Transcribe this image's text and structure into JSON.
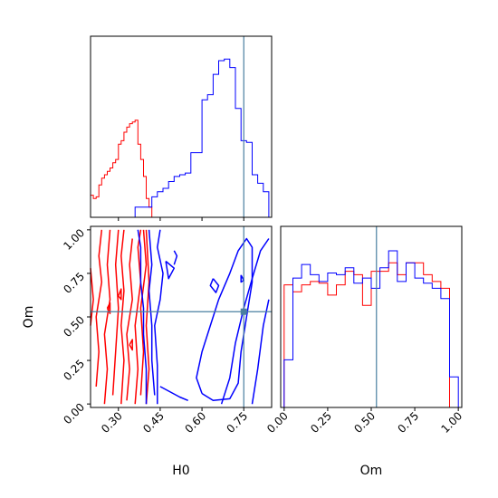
{
  "chart_data": {
    "type": "corner",
    "parameters": [
      "H0",
      "Om"
    ],
    "truth": {
      "H0": 0.75,
      "Om": 0.53
    },
    "colors": {
      "series_a": "#ff0000",
      "series_b": "#0000ff",
      "truth": "#4a7fa0"
    },
    "axes": {
      "H0": {
        "range": [
          0.2,
          0.85
        ],
        "ticks": [
          0.3,
          0.45,
          0.6,
          0.75
        ],
        "tick_labels": [
          "0.30",
          "0.45",
          "0.60",
          "0.75"
        ],
        "xlabel": "H0"
      },
      "Om": {
        "range": [
          -0.02,
          1.02
        ],
        "ticks": [
          0.0,
          0.25,
          0.5,
          0.75,
          1.0
        ],
        "tick_labels": [
          "0.00",
          "0.25",
          "0.50",
          "0.75",
          "1.00"
        ],
        "xlabel": "Om",
        "ylabel": "Om"
      }
    },
    "hist_H0": {
      "ymax": 1.0,
      "series": [
        {
          "color": "#ff0000",
          "x": [
            0.2,
            0.21,
            0.22,
            0.23,
            0.24,
            0.25,
            0.26,
            0.27,
            0.28,
            0.29,
            0.3,
            0.31,
            0.32,
            0.33,
            0.34,
            0.35,
            0.36,
            0.37,
            0.38,
            0.39,
            0.4,
            0.41,
            0.42
          ],
          "y": [
            0.13,
            0.11,
            0.12,
            0.19,
            0.23,
            0.25,
            0.27,
            0.29,
            0.32,
            0.34,
            0.43,
            0.45,
            0.5,
            0.53,
            0.55,
            0.56,
            0.57,
            0.43,
            0.34,
            0.24,
            0.11,
            0.06,
            0.0
          ]
        },
        {
          "color": "#0000ff",
          "x": [
            0.2,
            0.22,
            0.24,
            0.26,
            0.28,
            0.3,
            0.32,
            0.34,
            0.36,
            0.38,
            0.4,
            0.42,
            0.44,
            0.46,
            0.48,
            0.5,
            0.52,
            0.54,
            0.56,
            0.58,
            0.6,
            0.62,
            0.64,
            0.66,
            0.68,
            0.7,
            0.72,
            0.74,
            0.76,
            0.78,
            0.8,
            0.82,
            0.84
          ],
          "y": [
            0.0,
            0.0,
            0.0,
            0.0,
            0.0,
            0.0,
            0.0,
            0.0,
            0.06,
            0.06,
            0.06,
            0.12,
            0.15,
            0.17,
            0.21,
            0.24,
            0.25,
            0.26,
            0.38,
            0.38,
            0.69,
            0.72,
            0.84,
            0.92,
            0.93,
            0.88,
            0.64,
            0.45,
            0.44,
            0.25,
            0.2,
            0.15,
            0.0
          ]
        }
      ]
    },
    "hist_Om": {
      "ymax": 1.0,
      "series": [
        {
          "color": "#ff0000",
          "x": [
            0.0,
            0.05,
            0.1,
            0.15,
            0.2,
            0.25,
            0.3,
            0.35,
            0.4,
            0.45,
            0.5,
            0.55,
            0.6,
            0.65,
            0.7,
            0.75,
            0.8,
            0.85,
            0.9,
            0.95
          ],
          "y": [
            0.72,
            0.68,
            0.72,
            0.74,
            0.73,
            0.66,
            0.72,
            0.8,
            0.78,
            0.6,
            0.8,
            0.8,
            0.85,
            0.78,
            0.85,
            0.85,
            0.78,
            0.74,
            0.7,
            0.0
          ]
        },
        {
          "color": "#0000ff",
          "x": [
            0.0,
            0.05,
            0.1,
            0.15,
            0.2,
            0.25,
            0.3,
            0.35,
            0.4,
            0.45,
            0.5,
            0.55,
            0.6,
            0.65,
            0.7,
            0.75,
            0.8,
            0.85,
            0.9,
            0.95
          ],
          "y": [
            0.28,
            0.76,
            0.84,
            0.78,
            0.74,
            0.79,
            0.78,
            0.82,
            0.73,
            0.76,
            0.7,
            0.82,
            0.92,
            0.74,
            0.85,
            0.76,
            0.73,
            0.7,
            0.64,
            0.18
          ]
        }
      ]
    },
    "contours": [
      {
        "color": "#ff0000",
        "paths": [
          [
            [
              0.2,
              0.78
            ],
            [
              0.21,
              0.6
            ],
            [
              0.2,
              0.45
            ]
          ],
          [
            [
              0.22,
              0.1
            ],
            [
              0.23,
              0.3
            ],
            [
              0.22,
              0.5
            ],
            [
              0.24,
              0.7
            ],
            [
              0.23,
              0.85
            ],
            [
              0.24,
              1.0
            ]
          ],
          [
            [
              0.25,
              0.0
            ],
            [
              0.26,
              0.2
            ],
            [
              0.25,
              0.4
            ],
            [
              0.27,
              0.6
            ],
            [
              0.26,
              0.8
            ],
            [
              0.27,
              1.0
            ]
          ],
          [
            [
              0.28,
              0.05
            ],
            [
              0.29,
              0.3
            ],
            [
              0.3,
              0.55
            ],
            [
              0.29,
              0.8
            ],
            [
              0.3,
              1.0
            ]
          ],
          [
            [
              0.31,
              0.0
            ],
            [
              0.32,
              0.25
            ],
            [
              0.31,
              0.45
            ],
            [
              0.32,
              0.65
            ],
            [
              0.31,
              0.85
            ],
            [
              0.32,
              1.0
            ]
          ],
          [
            [
              0.33,
              0.02
            ],
            [
              0.34,
              0.2
            ],
            [
              0.33,
              0.4
            ],
            [
              0.35,
              0.6
            ],
            [
              0.34,
              0.8
            ],
            [
              0.35,
              0.95
            ]
          ],
          [
            [
              0.36,
              0.0
            ],
            [
              0.37,
              0.2
            ],
            [
              0.36,
              0.45
            ],
            [
              0.38,
              0.7
            ],
            [
              0.37,
              0.9
            ],
            [
              0.38,
              1.0
            ]
          ],
          [
            [
              0.38,
              0.05
            ],
            [
              0.39,
              0.3
            ],
            [
              0.38,
              0.55
            ],
            [
              0.4,
              0.8
            ],
            [
              0.39,
              1.0
            ]
          ],
          [
            [
              0.4,
              0.0
            ],
            [
              0.41,
              0.2
            ],
            [
              0.4,
              0.45
            ],
            [
              0.41,
              0.7
            ],
            [
              0.4,
              1.0
            ]
          ],
          [
            [
              0.26,
              0.55
            ],
            [
              0.27,
              0.58
            ],
            [
              0.27,
              0.52
            ],
            [
              0.26,
              0.55
            ]
          ],
          [
            [
              0.3,
              0.62
            ],
            [
              0.31,
              0.66
            ],
            [
              0.31,
              0.6
            ],
            [
              0.3,
              0.62
            ]
          ],
          [
            [
              0.34,
              0.34
            ],
            [
              0.35,
              0.37
            ],
            [
              0.35,
              0.31
            ],
            [
              0.34,
              0.34
            ]
          ]
        ]
      },
      {
        "color": "#0000ff",
        "paths": [
          [
            [
              0.4,
              0.0
            ],
            [
              0.4,
              0.2
            ],
            [
              0.39,
              0.4
            ],
            [
              0.39,
              0.55
            ],
            [
              0.38,
              0.7
            ],
            [
              0.38,
              0.9
            ],
            [
              0.37,
              1.0
            ]
          ],
          [
            [
              0.43,
              0.05
            ],
            [
              0.42,
              0.25
            ],
            [
              0.42,
              0.45
            ],
            [
              0.41,
              0.65
            ],
            [
              0.42,
              0.8
            ],
            [
              0.41,
              1.0
            ]
          ],
          [
            [
              0.44,
              0.0
            ],
            [
              0.44,
              0.22
            ],
            [
              0.43,
              0.45
            ],
            [
              0.45,
              0.6
            ],
            [
              0.46,
              0.75
            ],
            [
              0.44,
              0.9
            ],
            [
              0.45,
              1.0
            ]
          ],
          [
            [
              0.45,
              0.1
            ],
            [
              0.52,
              0.04
            ],
            [
              0.55,
              0.02
            ]
          ],
          [
            [
              0.47,
              0.82
            ],
            [
              0.5,
              0.78
            ],
            [
              0.48,
              0.72
            ],
            [
              0.47,
              0.82
            ]
          ],
          [
            [
              0.5,
              0.88
            ],
            [
              0.51,
              0.85
            ],
            [
              0.5,
              0.8
            ]
          ],
          [
            [
              0.6,
              0.06
            ],
            [
              0.58,
              0.15
            ],
            [
              0.6,
              0.3
            ],
            [
              0.63,
              0.45
            ],
            [
              0.66,
              0.6
            ],
            [
              0.7,
              0.75
            ],
            [
              0.73,
              0.88
            ],
            [
              0.76,
              0.95
            ],
            [
              0.78,
              0.9
            ],
            [
              0.78,
              0.7
            ],
            [
              0.76,
              0.5
            ],
            [
              0.74,
              0.3
            ],
            [
              0.73,
              0.12
            ],
            [
              0.7,
              0.03
            ],
            [
              0.64,
              0.02
            ],
            [
              0.6,
              0.06
            ]
          ],
          [
            [
              0.67,
              0.0
            ],
            [
              0.7,
              0.15
            ],
            [
              0.72,
              0.35
            ],
            [
              0.75,
              0.55
            ],
            [
              0.78,
              0.72
            ],
            [
              0.81,
              0.88
            ],
            [
              0.84,
              0.95
            ]
          ],
          [
            [
              0.78,
              0.0
            ],
            [
              0.8,
              0.2
            ],
            [
              0.82,
              0.45
            ],
            [
              0.84,
              0.6
            ]
          ],
          [
            [
              0.64,
              0.72
            ],
            [
              0.66,
              0.68
            ],
            [
              0.65,
              0.64
            ],
            [
              0.63,
              0.68
            ],
            [
              0.64,
              0.72
            ]
          ],
          [
            [
              0.74,
              0.74
            ],
            [
              0.75,
              0.71
            ],
            [
              0.74,
              0.7
            ],
            [
              0.74,
              0.74
            ]
          ]
        ]
      }
    ]
  }
}
